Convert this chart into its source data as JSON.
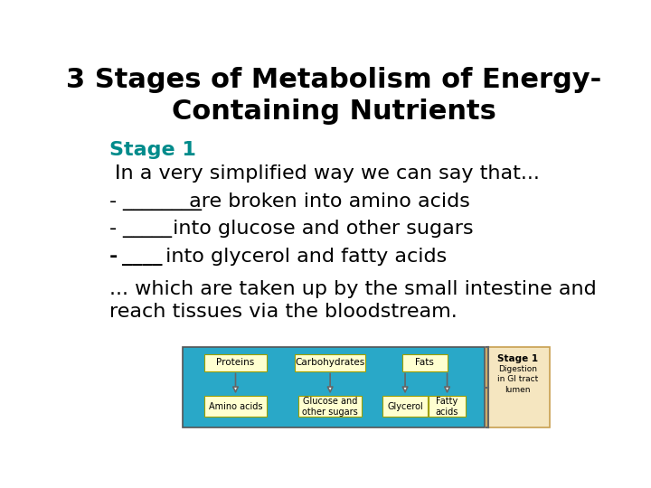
{
  "title_line1": "3 Stages of Metabolism of Energy-",
  "title_line2": "Containing Nutrients",
  "title_fontsize": 22,
  "title_color": "#000000",
  "stage_label": "Stage 1",
  "stage_color": "#008B8B",
  "stage_fontsize": 16,
  "body_fontsize": 16,
  "body_color": "#000000",
  "line1": "In a very simplified way we can say that...",
  "line2_dash": "-",
  "line2_blank": "________",
  "line2_suffix": " are broken into amino acids",
  "line3_dash": "-",
  "line3_blank": "_____",
  "line3_suffix": " into glucose and other sugars",
  "line4_dash": "-",
  "line4_blank": "____",
  "line4_suffix": " into glycerol and fatty acids",
  "line5": "... which are taken up by the small intestine and\nreach tissues via the bloodstream.",
  "bg_color": "#FFFFFF",
  "diagram": {
    "bg_color": "#29A8C8",
    "box_fill": "#FFFFD0",
    "box_edge": "#A0A000",
    "sidebar_fill": "#F5E6C0",
    "sidebar_edge": "#C8A050",
    "arrow_facecolor": "#FFFFFF",
    "arrow_edgecolor": "#666666",
    "sidebar_title": "Stage 1",
    "sidebar_body": "Digestion\nin GI tract\nlumen"
  }
}
